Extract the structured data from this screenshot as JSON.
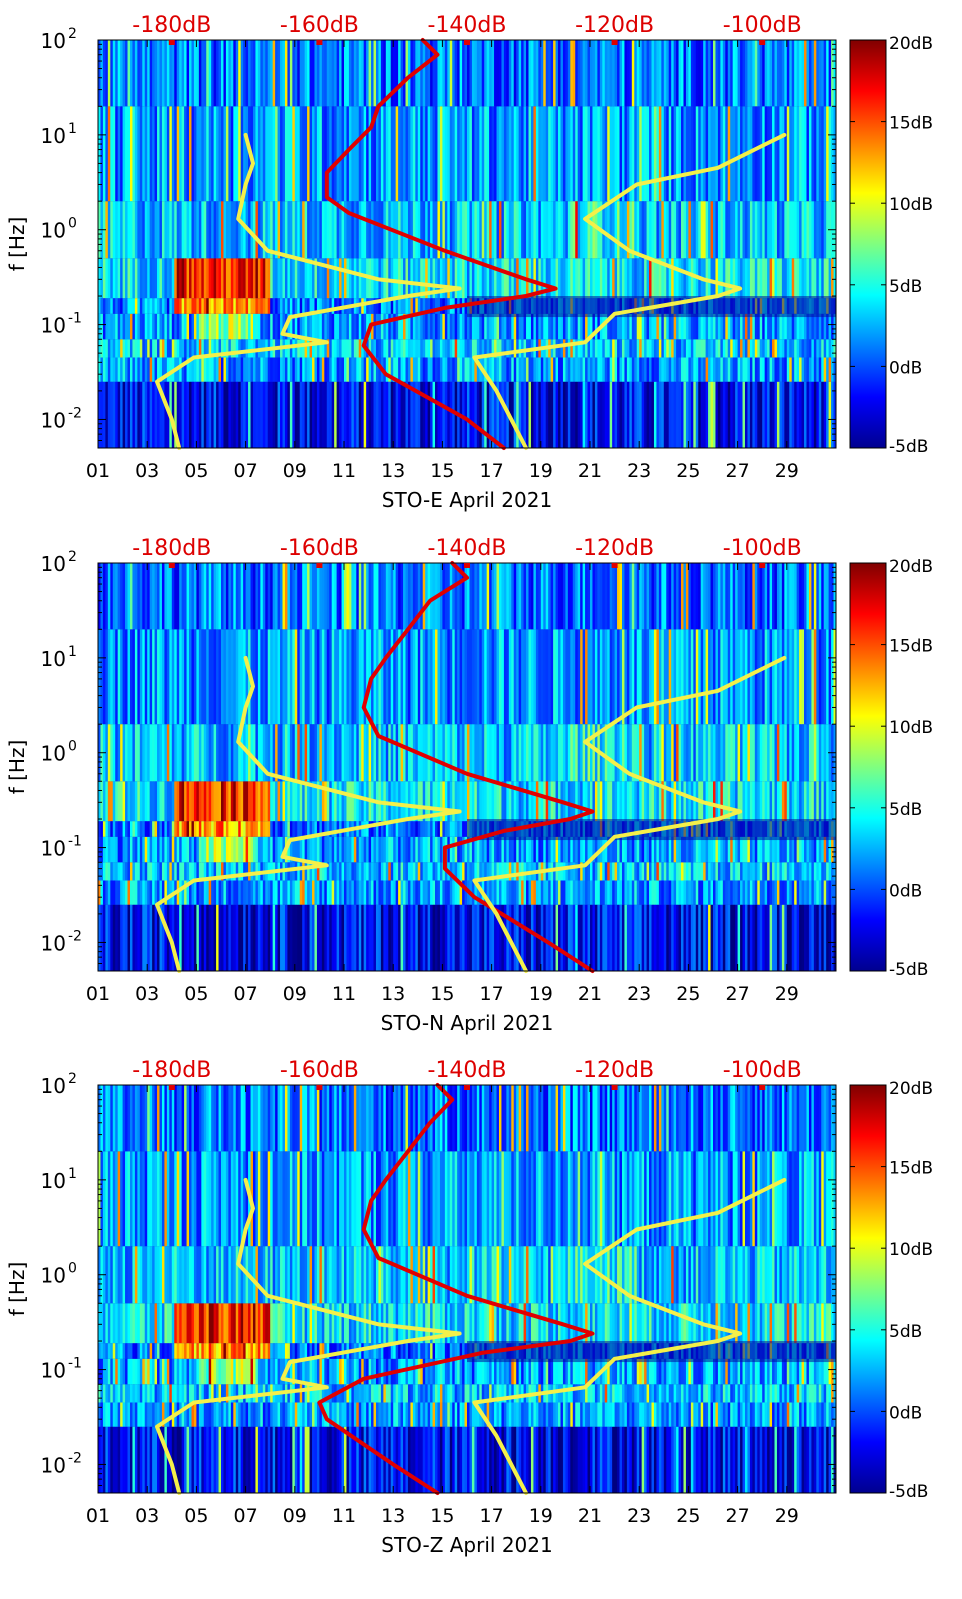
{
  "figure": {
    "colorbar_max_label": "20dB",
    "colors": {
      "ref_line_red": "#e00000",
      "ref_line_yellow": "#f4f04a",
      "top_axis_text": "#dd0000",
      "frame": "#000000"
    }
  },
  "chart_data": [
    {
      "type": "heatmap",
      "channel": "E",
      "xlabel": "STO-E April 2021",
      "ylabel": "f [Hz]",
      "y_scale": "log",
      "ylim": [
        0.005,
        100
      ],
      "xlim": [
        1,
        31
      ],
      "x_ticks": [
        "01",
        "03",
        "05",
        "07",
        "09",
        "11",
        "13",
        "15",
        "17",
        "19",
        "21",
        "23",
        "25",
        "27",
        "29"
      ],
      "y_ticks": [
        {
          "value": 0.01,
          "base": "10",
          "exp": "-2"
        },
        {
          "value": 0.1,
          "base": "10",
          "exp": "-1"
        },
        {
          "value": 1,
          "base": "10",
          "exp": "0"
        },
        {
          "value": 10,
          "base": "10",
          "exp": "1"
        },
        {
          "value": 100,
          "base": "10",
          "exp": "2"
        }
      ],
      "top_axis_ticks": [
        "-180dB",
        "-160dB",
        "-140dB",
        "-120dB",
        "-100dB"
      ],
      "colorbar": {
        "range": [
          -5,
          20
        ],
        "ticks": [
          "20dB",
          "15dB",
          "10dB",
          "5dB",
          "0dB",
          "-5dB"
        ]
      },
      "grid": false,
      "legend": "none",
      "series": [
        {
          "color": "#e00000",
          "unit": "dB",
          "points": [
            [
              0.005,
              -135
            ],
            [
              0.01,
              -140
            ],
            [
              0.03,
              -151
            ],
            [
              0.06,
              -154
            ],
            [
              0.1,
              -153
            ],
            [
              0.15,
              -143
            ],
            [
              0.2,
              -132
            ],
            [
              0.24,
              -128
            ],
            [
              0.3,
              -132
            ],
            [
              0.6,
              -143
            ],
            [
              1.5,
              -156
            ],
            [
              2.2,
              -159
            ],
            [
              4,
              -159
            ],
            [
              7,
              -156
            ],
            [
              12,
              -153
            ],
            [
              20,
              -152
            ],
            [
              40,
              -148
            ],
            [
              70,
              -144
            ],
            [
              100,
              -146
            ]
          ]
        },
        {
          "color": "#f4f04a",
          "unit": "dB",
          "points": [
            [
              0.005,
              -179
            ],
            [
              0.01,
              -180
            ],
            [
              0.025,
              -182
            ],
            [
              0.045,
              -177
            ],
            [
              0.065,
              -159
            ],
            [
              0.08,
              -165
            ],
            [
              0.12,
              -164
            ],
            [
              0.2,
              -148
            ],
            [
              0.24,
              -141
            ],
            [
              0.3,
              -152
            ],
            [
              0.6,
              -167
            ],
            [
              1.3,
              -171
            ],
            [
              3,
              -170
            ],
            [
              5,
              -169
            ],
            [
              10,
              -170
            ]
          ]
        },
        {
          "color": "#f4f04a",
          "unit": "dB",
          "points": [
            [
              0.005,
              -132
            ],
            [
              0.02,
              -136
            ],
            [
              0.045,
              -139
            ],
            [
              0.065,
              -124
            ],
            [
              0.13,
              -120
            ],
            [
              0.2,
              -106
            ],
            [
              0.24,
              -103
            ],
            [
              0.3,
              -108
            ],
            [
              0.6,
              -118
            ],
            [
              1.3,
              -124
            ],
            [
              3,
              -117
            ],
            [
              4.5,
              -106
            ],
            [
              10,
              -97
            ]
          ]
        }
      ]
    },
    {
      "type": "heatmap",
      "channel": "N",
      "xlabel": "STO-N April 2021",
      "ylabel": "f [Hz]",
      "y_scale": "log",
      "ylim": [
        0.005,
        100
      ],
      "xlim": [
        1,
        31
      ],
      "x_ticks": [
        "01",
        "03",
        "05",
        "07",
        "09",
        "11",
        "13",
        "15",
        "17",
        "19",
        "21",
        "23",
        "25",
        "27",
        "29"
      ],
      "y_ticks": [
        {
          "value": 0.01,
          "base": "10",
          "exp": "-2"
        },
        {
          "value": 0.1,
          "base": "10",
          "exp": "-1"
        },
        {
          "value": 1,
          "base": "10",
          "exp": "0"
        },
        {
          "value": 10,
          "base": "10",
          "exp": "1"
        },
        {
          "value": 100,
          "base": "10",
          "exp": "2"
        }
      ],
      "top_axis_ticks": [
        "-180dB",
        "-160dB",
        "-140dB",
        "-120dB",
        "-100dB"
      ],
      "colorbar": {
        "range": [
          -5,
          20
        ],
        "ticks": [
          "20dB",
          "15dB",
          "10dB",
          "5dB",
          "0dB",
          "-5dB"
        ]
      },
      "grid": false,
      "legend": "none",
      "series": [
        {
          "color": "#e00000",
          "unit": "dB",
          "points": [
            [
              0.005,
              -123
            ],
            [
              0.01,
              -129
            ],
            [
              0.03,
              -139
            ],
            [
              0.06,
              -143
            ],
            [
              0.1,
              -143
            ],
            [
              0.15,
              -135
            ],
            [
              0.2,
              -126
            ],
            [
              0.24,
              -123
            ],
            [
              0.3,
              -127
            ],
            [
              0.6,
              -140
            ],
            [
              1.5,
              -152
            ],
            [
              3,
              -154
            ],
            [
              6,
              -153
            ],
            [
              10,
              -151
            ],
            [
              20,
              -148
            ],
            [
              40,
              -145
            ],
            [
              70,
              -140
            ],
            [
              100,
              -142
            ]
          ]
        },
        {
          "color": "#f4f04a",
          "unit": "dB",
          "points": [
            [
              0.005,
              -179
            ],
            [
              0.01,
              -180
            ],
            [
              0.025,
              -182
            ],
            [
              0.045,
              -177
            ],
            [
              0.065,
              -159
            ],
            [
              0.08,
              -165
            ],
            [
              0.12,
              -164
            ],
            [
              0.2,
              -148
            ],
            [
              0.24,
              -141
            ],
            [
              0.3,
              -152
            ],
            [
              0.6,
              -167
            ],
            [
              1.3,
              -171
            ],
            [
              3,
              -170
            ],
            [
              5,
              -169
            ],
            [
              10,
              -170
            ]
          ]
        },
        {
          "color": "#f4f04a",
          "unit": "dB",
          "points": [
            [
              0.005,
              -132
            ],
            [
              0.02,
              -136
            ],
            [
              0.045,
              -139
            ],
            [
              0.065,
              -124
            ],
            [
              0.13,
              -120
            ],
            [
              0.2,
              -106
            ],
            [
              0.24,
              -103
            ],
            [
              0.3,
              -108
            ],
            [
              0.6,
              -118
            ],
            [
              1.3,
              -124
            ],
            [
              3,
              -117
            ],
            [
              4.5,
              -106
            ],
            [
              10,
              -97
            ]
          ]
        }
      ]
    },
    {
      "type": "heatmap",
      "channel": "Z",
      "xlabel": "STO-Z April 2021",
      "ylabel": "f [Hz]",
      "y_scale": "log",
      "ylim": [
        0.005,
        100
      ],
      "xlim": [
        1,
        31
      ],
      "x_ticks": [
        "01",
        "03",
        "05",
        "07",
        "09",
        "11",
        "13",
        "15",
        "17",
        "19",
        "21",
        "23",
        "25",
        "27",
        "29"
      ],
      "y_ticks": [
        {
          "value": 0.01,
          "base": "10",
          "exp": "-2"
        },
        {
          "value": 0.1,
          "base": "10",
          "exp": "-1"
        },
        {
          "value": 1,
          "base": "10",
          "exp": "0"
        },
        {
          "value": 10,
          "base": "10",
          "exp": "1"
        },
        {
          "value": 100,
          "base": "10",
          "exp": "2"
        }
      ],
      "top_axis_ticks": [
        "-180dB",
        "-160dB",
        "-140dB",
        "-120dB",
        "-100dB"
      ],
      "colorbar": {
        "range": [
          -5,
          20
        ],
        "ticks": [
          "20dB",
          "15dB",
          "10dB",
          "5dB",
          "0dB",
          "-5dB"
        ]
      },
      "grid": false,
      "legend": "none",
      "series": [
        {
          "color": "#e00000",
          "unit": "dB",
          "points": [
            [
              0.005,
              -144
            ],
            [
              0.01,
              -150
            ],
            [
              0.03,
              -159
            ],
            [
              0.045,
              -160
            ],
            [
              0.08,
              -154
            ],
            [
              0.15,
              -138
            ],
            [
              0.2,
              -126
            ],
            [
              0.24,
              -123
            ],
            [
              0.3,
              -127
            ],
            [
              0.6,
              -140
            ],
            [
              1.5,
              -152
            ],
            [
              3,
              -154
            ],
            [
              6,
              -153
            ],
            [
              10,
              -151
            ],
            [
              20,
              -148
            ],
            [
              40,
              -145
            ],
            [
              70,
              -142
            ],
            [
              100,
              -144
            ]
          ]
        },
        {
          "color": "#f4f04a",
          "unit": "dB",
          "points": [
            [
              0.005,
              -179
            ],
            [
              0.01,
              -180
            ],
            [
              0.025,
              -182
            ],
            [
              0.045,
              -177
            ],
            [
              0.065,
              -159
            ],
            [
              0.08,
              -165
            ],
            [
              0.12,
              -164
            ],
            [
              0.2,
              -148
            ],
            [
              0.24,
              -141
            ],
            [
              0.3,
              -152
            ],
            [
              0.6,
              -167
            ],
            [
              1.3,
              -171
            ],
            [
              3,
              -170
            ],
            [
              5,
              -169
            ],
            [
              10,
              -170
            ]
          ]
        },
        {
          "color": "#f4f04a",
          "unit": "dB",
          "points": [
            [
              0.005,
              -132
            ],
            [
              0.02,
              -136
            ],
            [
              0.045,
              -139
            ],
            [
              0.065,
              -124
            ],
            [
              0.13,
              -120
            ],
            [
              0.2,
              -106
            ],
            [
              0.24,
              -103
            ],
            [
              0.3,
              -108
            ],
            [
              0.6,
              -118
            ],
            [
              1.3,
              -124
            ],
            [
              3,
              -117
            ],
            [
              4.5,
              -106
            ],
            [
              10,
              -97
            ]
          ]
        }
      ]
    }
  ]
}
